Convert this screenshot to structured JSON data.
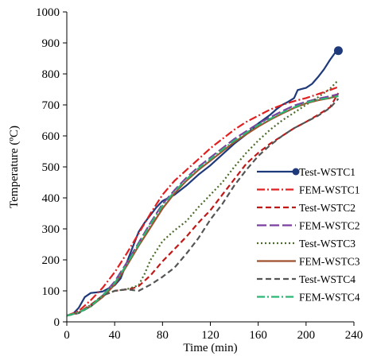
{
  "chart_data": {
    "type": "line",
    "title": "",
    "xlabel": "Time (min)",
    "ylabel": "Temperature (ºC)",
    "xlim": [
      0,
      240
    ],
    "ylim": [
      0,
      1000
    ],
    "x_ticks": [
      0,
      40,
      80,
      120,
      160,
      200,
      240
    ],
    "y_ticks": [
      0,
      100,
      200,
      300,
      400,
      500,
      600,
      700,
      800,
      900,
      1000
    ],
    "grid": false,
    "legend_position": "right",
    "series": [
      {
        "name": "Test-WSTC1",
        "color": "#1f3a7a",
        "dash": "solid",
        "marker": "circle-end",
        "points": [
          [
            0,
            20
          ],
          [
            5,
            25
          ],
          [
            10,
            45
          ],
          [
            15,
            80
          ],
          [
            20,
            93
          ],
          [
            25,
            95
          ],
          [
            30,
            98
          ],
          [
            35,
            108
          ],
          [
            40,
            118
          ],
          [
            45,
            140
          ],
          [
            50,
            190
          ],
          [
            55,
            240
          ],
          [
            60,
            290
          ],
          [
            65,
            320
          ],
          [
            70,
            345
          ],
          [
            75,
            370
          ],
          [
            80,
            390
          ],
          [
            90,
            410
          ],
          [
            100,
            440
          ],
          [
            110,
            475
          ],
          [
            120,
            505
          ],
          [
            130,
            540
          ],
          [
            140,
            575
          ],
          [
            150,
            605
          ],
          [
            160,
            640
          ],
          [
            170,
            668
          ],
          [
            175,
            685
          ],
          [
            180,
            700
          ],
          [
            185,
            710
          ],
          [
            190,
            722
          ],
          [
            193,
            748
          ],
          [
            197,
            752
          ],
          [
            200,
            755
          ],
          [
            205,
            768
          ],
          [
            210,
            790
          ],
          [
            215,
            815
          ],
          [
            220,
            845
          ],
          [
            225,
            872
          ],
          [
            227,
            875
          ]
        ]
      },
      {
        "name": "FEM-WSTC1",
        "color": "#e02020",
        "dash": "dashdot",
        "points": [
          [
            0,
            20
          ],
          [
            10,
            35
          ],
          [
            20,
            70
          ],
          [
            30,
            110
          ],
          [
            40,
            160
          ],
          [
            50,
            220
          ],
          [
            60,
            285
          ],
          [
            70,
            350
          ],
          [
            80,
            410
          ],
          [
            90,
            455
          ],
          [
            100,
            490
          ],
          [
            110,
            525
          ],
          [
            120,
            560
          ],
          [
            130,
            590
          ],
          [
            140,
            620
          ],
          [
            150,
            645
          ],
          [
            160,
            665
          ],
          [
            170,
            685
          ],
          [
            180,
            700
          ],
          [
            190,
            712
          ],
          [
            200,
            722
          ],
          [
            210,
            735
          ],
          [
            220,
            748
          ],
          [
            227,
            758
          ]
        ]
      },
      {
        "name": "Test-WSTC2",
        "color": "#c01818",
        "dash": "dash",
        "points": [
          [
            0,
            20
          ],
          [
            10,
            30
          ],
          [
            20,
            55
          ],
          [
            30,
            85
          ],
          [
            40,
            100
          ],
          [
            50,
            105
          ],
          [
            55,
            108
          ],
          [
            60,
            115
          ],
          [
            70,
            150
          ],
          [
            80,
            195
          ],
          [
            90,
            235
          ],
          [
            100,
            275
          ],
          [
            110,
            320
          ],
          [
            120,
            360
          ],
          [
            130,
            410
          ],
          [
            140,
            460
          ],
          [
            150,
            510
          ],
          [
            160,
            545
          ],
          [
            170,
            575
          ],
          [
            180,
            600
          ],
          [
            190,
            625
          ],
          [
            200,
            645
          ],
          [
            210,
            668
          ],
          [
            220,
            692
          ],
          [
            227,
            738
          ]
        ]
      },
      {
        "name": "FEM-WSTC2",
        "color": "#7a3fa0",
        "dash": "longdash",
        "points": [
          [
            0,
            20
          ],
          [
            10,
            30
          ],
          [
            20,
            50
          ],
          [
            30,
            85
          ],
          [
            40,
            130
          ],
          [
            50,
            190
          ],
          [
            60,
            255
          ],
          [
            70,
            320
          ],
          [
            80,
            380
          ],
          [
            90,
            425
          ],
          [
            100,
            465
          ],
          [
            110,
            500
          ],
          [
            120,
            530
          ],
          [
            130,
            560
          ],
          [
            140,
            590
          ],
          [
            150,
            615
          ],
          [
            160,
            640
          ],
          [
            170,
            660
          ],
          [
            180,
            680
          ],
          [
            190,
            698
          ],
          [
            200,
            710
          ],
          [
            210,
            720
          ],
          [
            220,
            728
          ],
          [
            227,
            735
          ]
        ]
      },
      {
        "name": "Test-WSTC3",
        "color": "#4a6b2a",
        "dash": "dot",
        "points": [
          [
            0,
            20
          ],
          [
            10,
            30
          ],
          [
            20,
            55
          ],
          [
            30,
            85
          ],
          [
            40,
            100
          ],
          [
            50,
            105
          ],
          [
            60,
            118
          ],
          [
            65,
            155
          ],
          [
            70,
            200
          ],
          [
            80,
            260
          ],
          [
            90,
            295
          ],
          [
            100,
            325
          ],
          [
            110,
            370
          ],
          [
            120,
            410
          ],
          [
            130,
            450
          ],
          [
            140,
            500
          ],
          [
            150,
            545
          ],
          [
            160,
            585
          ],
          [
            170,
            620
          ],
          [
            180,
            650
          ],
          [
            190,
            675
          ],
          [
            200,
            700
          ],
          [
            210,
            725
          ],
          [
            220,
            752
          ],
          [
            227,
            780
          ]
        ]
      },
      {
        "name": "FEM-WSTC3",
        "color": "#a0522d",
        "dash": "solid",
        "points": [
          [
            0,
            20
          ],
          [
            10,
            30
          ],
          [
            20,
            50
          ],
          [
            30,
            80
          ],
          [
            40,
            120
          ],
          [
            50,
            180
          ],
          [
            60,
            245
          ],
          [
            70,
            305
          ],
          [
            80,
            365
          ],
          [
            90,
            415
          ],
          [
            100,
            455
          ],
          [
            110,
            490
          ],
          [
            120,
            520
          ],
          [
            130,
            550
          ],
          [
            140,
            580
          ],
          [
            150,
            605
          ],
          [
            160,
            630
          ],
          [
            170,
            652
          ],
          [
            180,
            672
          ],
          [
            190,
            690
          ],
          [
            200,
            705
          ],
          [
            210,
            715
          ],
          [
            220,
            722
          ],
          [
            227,
            730
          ]
        ]
      },
      {
        "name": "Test-WSTC4",
        "color": "#555555",
        "dash": "dash",
        "points": [
          [
            0,
            20
          ],
          [
            10,
            28
          ],
          [
            20,
            50
          ],
          [
            30,
            85
          ],
          [
            40,
            100
          ],
          [
            50,
            105
          ],
          [
            60,
            100
          ],
          [
            70,
            120
          ],
          [
            80,
            145
          ],
          [
            90,
            175
          ],
          [
            100,
            220
          ],
          [
            110,
            270
          ],
          [
            120,
            330
          ],
          [
            130,
            380
          ],
          [
            140,
            440
          ],
          [
            150,
            490
          ],
          [
            160,
            535
          ],
          [
            170,
            570
          ],
          [
            180,
            600
          ],
          [
            190,
            625
          ],
          [
            200,
            645
          ],
          [
            210,
            665
          ],
          [
            220,
            690
          ],
          [
            227,
            720
          ]
        ]
      },
      {
        "name": "FEM-WSTC4",
        "color": "#2bb673",
        "dash": "dashdot",
        "points": [
          [
            0,
            20
          ],
          [
            10,
            30
          ],
          [
            20,
            50
          ],
          [
            30,
            85
          ],
          [
            40,
            125
          ],
          [
            50,
            185
          ],
          [
            60,
            250
          ],
          [
            70,
            315
          ],
          [
            80,
            375
          ],
          [
            90,
            420
          ],
          [
            100,
            460
          ],
          [
            110,
            495
          ],
          [
            120,
            525
          ],
          [
            130,
            555
          ],
          [
            140,
            585
          ],
          [
            150,
            610
          ],
          [
            160,
            635
          ],
          [
            170,
            655
          ],
          [
            180,
            675
          ],
          [
            190,
            692
          ],
          [
            200,
            707
          ],
          [
            210,
            717
          ],
          [
            220,
            723
          ],
          [
            227,
            728
          ]
        ]
      }
    ]
  }
}
